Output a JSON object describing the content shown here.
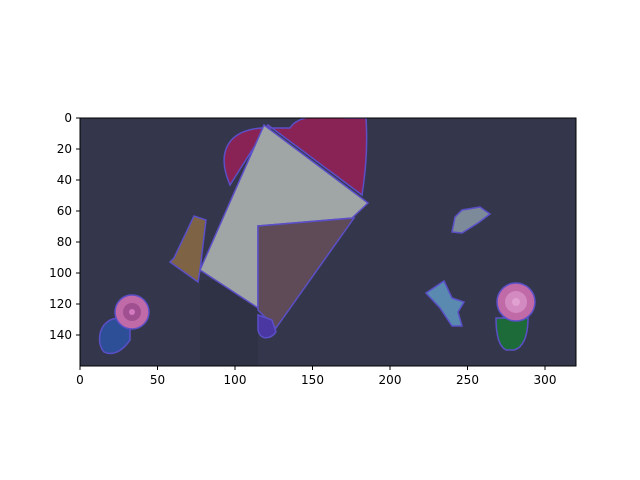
{
  "chart_data": {
    "type": "image",
    "x_axis": {
      "ticks": [
        0,
        50,
        100,
        150,
        200,
        250,
        300
      ],
      "tick_labels": [
        "0",
        "50",
        "100",
        "150",
        "200",
        "250",
        "300"
      ],
      "xlim": [
        0,
        320
      ]
    },
    "y_axis": {
      "ticks": [
        0,
        20,
        40,
        60,
        80,
        100,
        120,
        140
      ],
      "tick_labels": [
        "0",
        "20",
        "40",
        "60",
        "80",
        "100",
        "120",
        "140"
      ],
      "ylim": [
        160,
        0
      ],
      "inverted": true
    },
    "grid": false,
    "colors": {
      "background": "#34374b",
      "segment_gray": "#a0a5a5",
      "segment_brown": "#5e4b57",
      "segment_maroon": "#8a2355",
      "segment_tan": "#7e6444",
      "segment_blue": "#2d4f97",
      "segment_pink": "#c06aa8",
      "segment_purple": "#4a37a2",
      "segment_light_blue": "#5a8ab0",
      "segment_green": "#1e6b3a",
      "outline": "#5b4fc8"
    }
  }
}
